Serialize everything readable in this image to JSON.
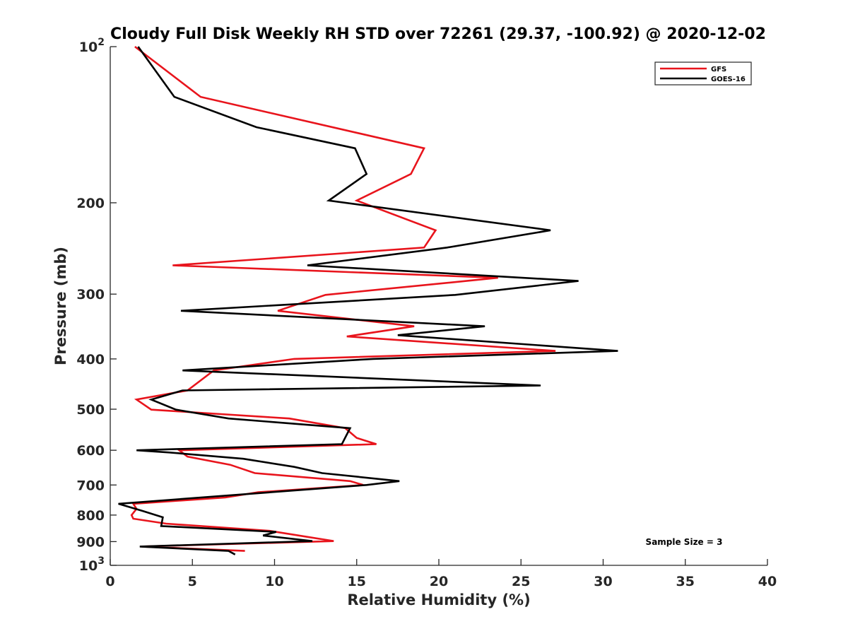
{
  "chart_data": {
    "type": "line",
    "title": "Cloudy Full Disk Weekly RH STD over 72261 (29.37, -100.92) @ 2020-12-02",
    "xlabel": "Relative Humidity (%)",
    "ylabel": "Pressure (mb)",
    "xlim": [
      0,
      40
    ],
    "ylim": [
      100,
      1000
    ],
    "y_scale": "log",
    "y_reversed": true,
    "x_ticks": [
      0,
      5,
      10,
      15,
      20,
      25,
      30,
      35,
      40
    ],
    "y_ticks": [
      100,
      200,
      300,
      400,
      500,
      600,
      700,
      800,
      900,
      1000
    ],
    "y_tick_labels": [
      {
        "base": "10",
        "exp": "2"
      },
      {
        "base": "200",
        "exp": ""
      },
      {
        "base": "300",
        "exp": ""
      },
      {
        "base": "400",
        "exp": ""
      },
      {
        "base": "500",
        "exp": ""
      },
      {
        "base": "600",
        "exp": ""
      },
      {
        "base": "700",
        "exp": ""
      },
      {
        "base": "800",
        "exp": ""
      },
      {
        "base": "900",
        "exp": ""
      },
      {
        "base": "10",
        "exp": "3"
      }
    ],
    "grid": false,
    "legend_position": "top-right",
    "annotation": "Sample Size = 3",
    "series": [
      {
        "name": "GFS",
        "color": "#e8141c",
        "points": [
          [
            1.5,
            100
          ],
          [
            5.5,
            125
          ],
          [
            19.1,
            157
          ],
          [
            18.3,
            176
          ],
          [
            15.0,
            198
          ],
          [
            19.8,
            226
          ],
          [
            19.1,
            244
          ],
          [
            3.8,
            264
          ],
          [
            23.6,
            279
          ],
          [
            13.1,
            301
          ],
          [
            10.2,
            323
          ],
          [
            18.5,
            346
          ],
          [
            14.4,
            362
          ],
          [
            27.1,
            386
          ],
          [
            11.2,
            400
          ],
          [
            6.3,
            421
          ],
          [
            4.7,
            460
          ],
          [
            1.6,
            479
          ],
          [
            2.5,
            501
          ],
          [
            10.9,
            521
          ],
          [
            14.3,
            544
          ],
          [
            15.0,
            568
          ],
          [
            16.2,
            584
          ],
          [
            4.2,
            600
          ],
          [
            4.7,
            617
          ],
          [
            7.3,
            640
          ],
          [
            8.8,
            664
          ],
          [
            14.6,
            688
          ],
          [
            15.4,
            700
          ],
          [
            9.0,
            723
          ],
          [
            7.0,
            740
          ],
          [
            1.4,
            761
          ],
          [
            1.6,
            778
          ],
          [
            1.3,
            800
          ],
          [
            1.4,
            813
          ],
          [
            3.4,
            831
          ],
          [
            9.7,
            858
          ],
          [
            13.6,
            898
          ],
          [
            1.9,
            920
          ],
          [
            8.2,
            938
          ]
        ]
      },
      {
        "name": "GOES-16",
        "color": "#000000",
        "points": [
          [
            1.7,
            100
          ],
          [
            3.9,
            125
          ],
          [
            8.9,
            143
          ],
          [
            14.9,
            157
          ],
          [
            15.6,
            176
          ],
          [
            13.3,
            198
          ],
          [
            26.8,
            226
          ],
          [
            20.5,
            244
          ],
          [
            12.0,
            264
          ],
          [
            28.5,
            283
          ],
          [
            21.0,
            301
          ],
          [
            4.3,
            323
          ],
          [
            22.8,
            346
          ],
          [
            17.5,
            360
          ],
          [
            30.9,
            386
          ],
          [
            16.0,
            400
          ],
          [
            4.4,
            421
          ],
          [
            26.2,
            450
          ],
          [
            4.4,
            460
          ],
          [
            2.5,
            479
          ],
          [
            4.0,
            501
          ],
          [
            7.2,
            521
          ],
          [
            14.6,
            544
          ],
          [
            14.1,
            584
          ],
          [
            1.6,
            600
          ],
          [
            3.6,
            606
          ],
          [
            8.1,
            623
          ],
          [
            11.2,
            646
          ],
          [
            12.9,
            664
          ],
          [
            17.6,
            688
          ],
          [
            15.6,
            700
          ],
          [
            0.5,
            761
          ],
          [
            2.0,
            786
          ],
          [
            3.2,
            808
          ],
          [
            3.1,
            840
          ],
          [
            10.1,
            862
          ],
          [
            9.3,
            876
          ],
          [
            12.3,
            898
          ],
          [
            1.8,
            920
          ],
          [
            7.2,
            938
          ],
          [
            7.6,
            953
          ]
        ]
      }
    ]
  }
}
